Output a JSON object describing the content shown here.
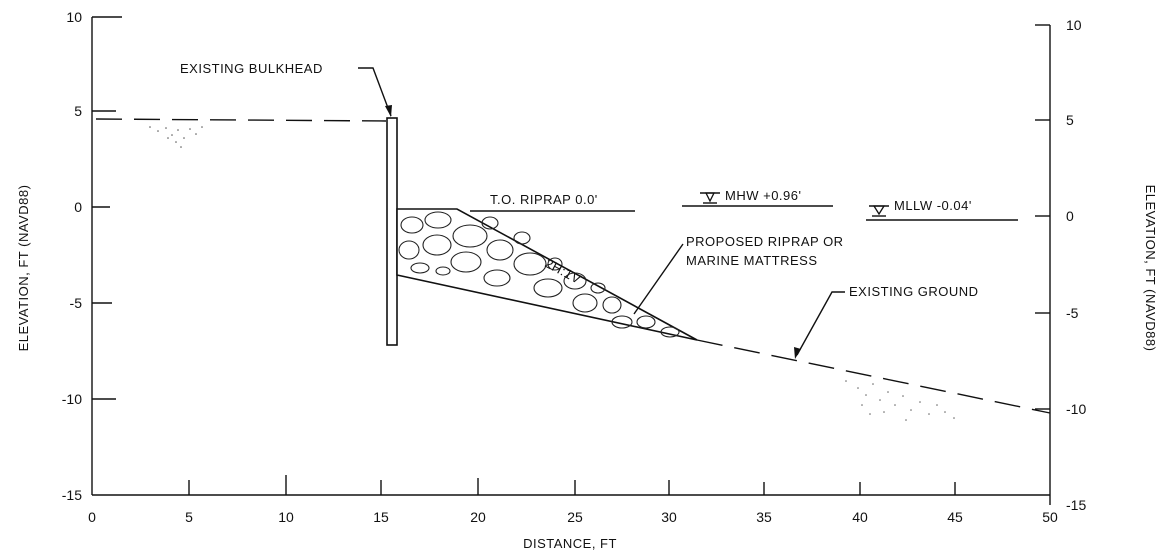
{
  "axes": {
    "xlabel": "DISTANCE, FT",
    "ylabel_left": "ELEVATION, FT (NAVD88)",
    "ylabel_right": "ELEVATION, FT (NAVD88)",
    "x_ticks": [
      "0",
      "5",
      "10",
      "15",
      "20",
      "25",
      "30",
      "35",
      "40",
      "45",
      "50"
    ],
    "y_ticks_left": [
      "10",
      "5",
      "0",
      "-5",
      "-10",
      "-15"
    ],
    "y_ticks_right": [
      "10",
      "5",
      "0",
      "-5",
      "-10",
      "-15"
    ]
  },
  "callouts": {
    "bulkhead": "EXISTING BULKHEAD",
    "top_riprap": "T.O. RIPRAP 0.0'",
    "mhw": "MHW +0.96'",
    "mllw": "MLLW -0.04'",
    "slope": "2H:1V",
    "riprap_line1": "PROPOSED RIPRAP OR",
    "riprap_line2": "MARINE MATTRESS",
    "ground": "EXISTING GROUND"
  }
}
